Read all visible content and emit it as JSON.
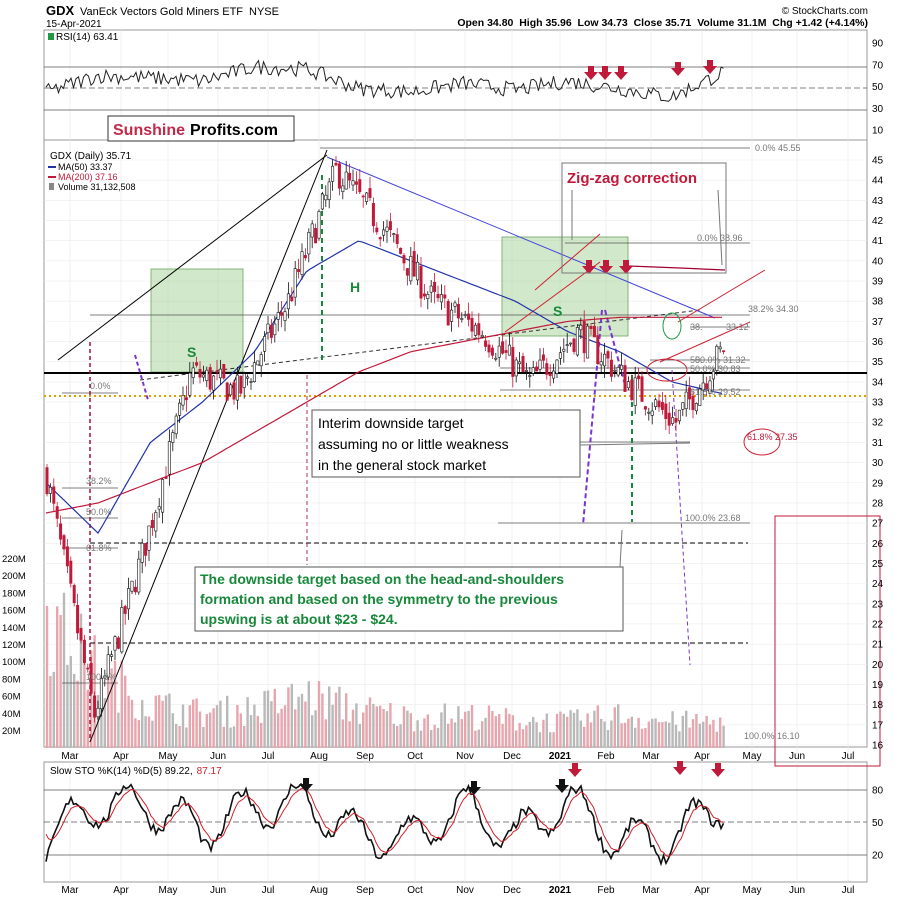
{
  "header": {
    "symbol": "GDX",
    "name": "VanEck Vectors Gold Miners ETF",
    "exchange": "NYSE",
    "date": "15-Apr-2021",
    "ohlc": "Open 34.80  High 35.96  Low 34.73  Close 35.71  Volume 31.1M  Chg +1.42 (+4.14%)",
    "copyright": "© StockCharts.com"
  },
  "brand": {
    "part1": "Sunshine",
    "part2": "Profits.com"
  },
  "legend": {
    "rsi": "RSI(14) 63.41",
    "price": "GDX (Daily) 35.71",
    "ma50": "MA(50) 33.37",
    "ma200": "MA(200) 37.16",
    "volume": "Volume 31,132,508",
    "sto_label": "Slow STO %K(14) %D(5) 89.22,",
    "sto_d": "87.17"
  },
  "annotations": {
    "zigzag": "Zig-zag correction",
    "interim_1": "Interim downside target",
    "interim_2": "assuming no or little weakness",
    "interim_3": "in the general stock market",
    "hs_1": "The downside target based on the head-and-shoulders",
    "hs_2": "formation and based on the symmetry to the previous",
    "hs_3": "upswing is at about $23 - $24.",
    "s_left": "S",
    "h_head": "H",
    "s_right": "S"
  },
  "fib_labels": {
    "f0_top": "0.0% 45.55",
    "f0_mid": "0.0% 38.96",
    "f382": "38.2% 34.30",
    "f3312": "33.12",
    "f3312_pre": "38.",
    "f50": "50.0% 31.32",
    "f50_pre": "50.",
    "f3083": "50.0% 30.83",
    "f618a": "61.8% 29.52",
    "f618b": "61.8% 27.35",
    "f100": "100.0% 23.68",
    "f100b": "100.0% 16.10",
    "left0": "0.0%",
    "left382": "38.2%",
    "left50": "50.0%",
    "left618": "61.8%",
    "left100": "100.0%"
  },
  "chart_data": {
    "type": "line",
    "title": "GDX VanEck Vectors Gold Miners ETF NYSE",
    "x_ticks": [
      "Mar",
      "Apr",
      "May",
      "Jun",
      "Jul",
      "Aug",
      "Sep",
      "Oct",
      "Nov",
      "Dec",
      "2021",
      "Feb",
      "Mar",
      "Apr",
      "May",
      "Jun",
      "Jul"
    ],
    "price_axis": {
      "ylim": [
        16,
        46
      ],
      "ticks": [
        16,
        17,
        18,
        19,
        20,
        21,
        22,
        23,
        24,
        25,
        26,
        27,
        28,
        29,
        30,
        31,
        32,
        33,
        34,
        35,
        36,
        37,
        38,
        39,
        40,
        41,
        42,
        43,
        44,
        45
      ]
    },
    "volume_axis": {
      "ticks": [
        "20M",
        "40M",
        "60M",
        "80M",
        "100M",
        "120M",
        "140M",
        "160M",
        "180M",
        "200M",
        "220M"
      ]
    },
    "rsi_axis": {
      "ylim": [
        0,
        100
      ],
      "ticks": [
        10,
        30,
        50,
        70,
        90
      ]
    },
    "sto_axis": {
      "ylim": [
        0,
        100
      ],
      "ticks": [
        20,
        50,
        80
      ]
    },
    "series": [
      {
        "name": "GDX (Daily) 35.71",
        "x": [
          "Mar",
          "Mar",
          "Apr",
          "May",
          "Jun",
          "Jul",
          "Aug",
          "Sep",
          "Oct",
          "Nov",
          "Dec",
          "2021",
          "Feb",
          "Mar",
          "Apr"
        ],
        "values": [
          29.5,
          17.5,
          25.5,
          34.5,
          33.5,
          38.0,
          44.5,
          41.5,
          38.0,
          36.5,
          34.0,
          36.5,
          34.0,
          32.0,
          35.7
        ]
      },
      {
        "name": "MA(50) 33.37",
        "x": [
          "Mar",
          "Apr",
          "May",
          "Jun",
          "Jul",
          "Aug",
          "Sep",
          "Oct",
          "Nov",
          "Dec",
          "2021",
          "Feb",
          "Mar",
          "Apr"
        ],
        "values": [
          29.0,
          26.5,
          31.0,
          33.0,
          35.5,
          39.5,
          41.0,
          40.0,
          39.0,
          38.0,
          36.5,
          35.5,
          34.0,
          33.4
        ]
      },
      {
        "name": "MA(200) 37.16",
        "x": [
          "Mar",
          "Apr",
          "May",
          "Jun",
          "Jul",
          "Aug",
          "Sep",
          "Oct",
          "Nov",
          "Dec",
          "2021",
          "Feb",
          "Mar",
          "Apr"
        ],
        "values": [
          27.5,
          28.0,
          29.0,
          30.0,
          31.5,
          33.0,
          34.5,
          35.5,
          36.0,
          36.5,
          37.0,
          37.2,
          37.2,
          37.2
        ]
      },
      {
        "name": "Volume 31,132,508",
        "x": [
          "Mar",
          "Apr",
          "May",
          "Jun",
          "Jul",
          "Aug",
          "Sep",
          "Oct",
          "Nov",
          "Dec",
          "2021",
          "Feb",
          "Mar",
          "Apr"
        ],
        "values": [
          150,
          90,
          50,
          40,
          45,
          60,
          45,
          35,
          38,
          32,
          30,
          38,
          30,
          31
        ]
      },
      {
        "name": "RSI(14) 63.41",
        "x": [
          "Mar",
          "Apr",
          "May",
          "Jun",
          "Jul",
          "Aug",
          "Sep",
          "Oct",
          "Nov",
          "Dec",
          "2021",
          "Feb",
          "Mar",
          "Apr"
        ],
        "values": [
          45,
          60,
          58,
          55,
          68,
          66,
          48,
          45,
          53,
          47,
          55,
          48,
          40,
          63.4
        ]
      },
      {
        "name": "Slow STO %K(14) %D(5)",
        "x": [
          "Mar",
          "Apr",
          "May",
          "Jun",
          "Jul",
          "Aug",
          "Sep",
          "Oct",
          "Nov",
          "Dec",
          "2021",
          "Feb",
          "Mar",
          "Apr"
        ],
        "values": [
          20,
          85,
          80,
          35,
          80,
          85,
          25,
          20,
          80,
          20,
          90,
          15,
          20,
          89.2
        ]
      }
    ]
  }
}
